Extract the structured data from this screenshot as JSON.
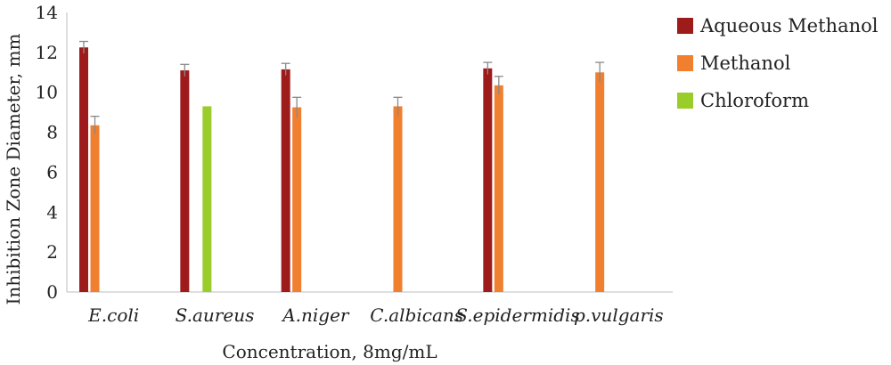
{
  "chart_data": {
    "type": "bar",
    "categories": [
      "E.coli",
      "S.aureus",
      "A.niger",
      "C.albicans",
      "S.epidermidis",
      "p.vulgaris"
    ],
    "series": [
      {
        "name": "Aqueous Methanol",
        "color": "#9e1b1b",
        "values": [
          12.25,
          11.1,
          11.15,
          null,
          11.2,
          null
        ],
        "errors": [
          0.3,
          0.3,
          0.3,
          null,
          0.3,
          null
        ]
      },
      {
        "name": "Methanol",
        "color": "#f07f2f",
        "values": [
          8.35,
          null,
          9.25,
          9.3,
          10.35,
          11.0
        ],
        "errors": [
          0.45,
          null,
          0.5,
          0.45,
          0.45,
          0.5
        ]
      },
      {
        "name": "Chloroform",
        "color": "#9acd2a",
        "values": [
          null,
          9.3,
          null,
          null,
          null,
          null
        ],
        "errors": [
          null,
          null,
          null,
          null,
          null,
          null
        ]
      }
    ],
    "xlabel": "Concentration, 8mg/mL",
    "ylabel": "Inhibition Zone Diameter, mm",
    "ylim": [
      0,
      14
    ],
    "yticks": [
      0,
      2,
      4,
      6,
      8,
      10,
      12,
      14
    ],
    "grid": false,
    "legend": "right"
  }
}
